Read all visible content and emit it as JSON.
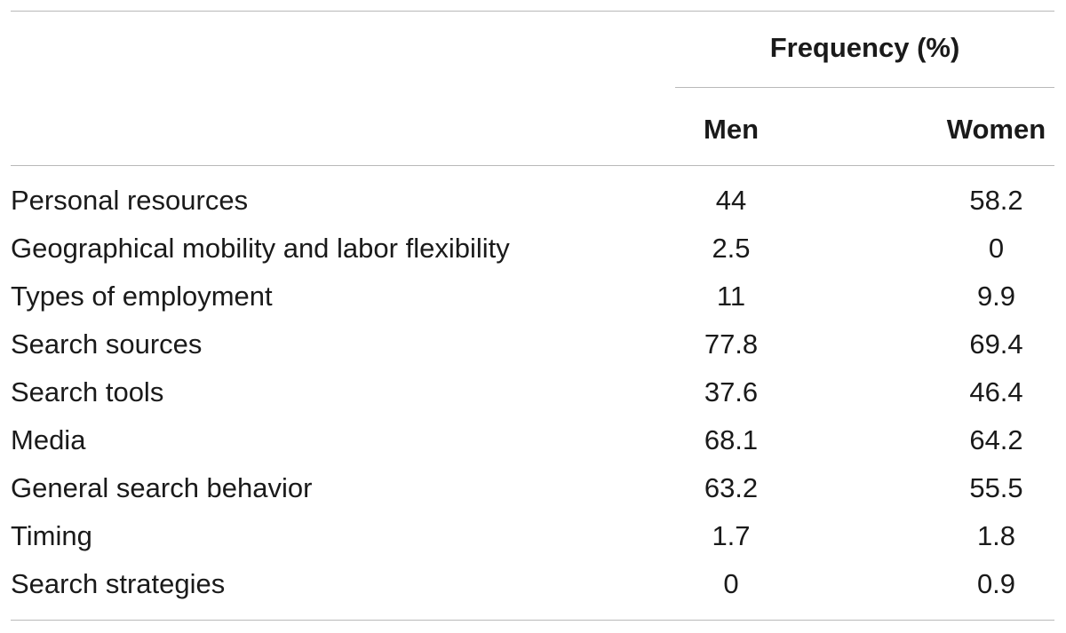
{
  "table": {
    "group_header": "Frequency (%)",
    "columns": {
      "men": "Men",
      "women": "Women"
    },
    "rows": [
      {
        "label": "Personal resources",
        "men": "44",
        "women": "58.2"
      },
      {
        "label": "Geographical mobility and labor flexibility",
        "men": "2.5",
        "women": "0"
      },
      {
        "label": "Types of employment",
        "men": "11",
        "women": "9.9"
      },
      {
        "label": "Search sources",
        "men": "77.8",
        "women": "69.4"
      },
      {
        "label": "Search tools",
        "men": "37.6",
        "women": "46.4"
      },
      {
        "label": "Media",
        "men": "68.1",
        "women": "64.2"
      },
      {
        "label": "General search behavior",
        "men": "63.2",
        "women": "55.5"
      },
      {
        "label": "Timing",
        "men": "1.7",
        "women": "1.8"
      },
      {
        "label": "Search strategies",
        "men": "0",
        "women": "0.9"
      }
    ]
  }
}
